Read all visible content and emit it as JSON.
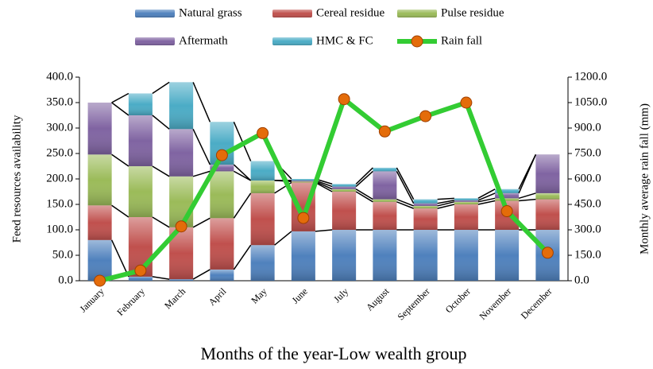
{
  "chart_data": {
    "type": "bar",
    "stacked": true,
    "x_label": "Months of the year-Low wealth group",
    "y_label": "Feed resources availability",
    "y2_label": "Monthly  average rain fall (mm)",
    "categories": [
      "January",
      "February",
      "March",
      "April",
      "May",
      "June",
      "July",
      "August",
      "September",
      "October",
      "November",
      "December"
    ],
    "series": [
      {
        "name": "Natural grass",
        "color": "#4f81bd",
        "values": [
          80,
          8,
          3,
          22,
          70,
          97,
          100,
          100,
          100,
          100,
          100,
          100
        ]
      },
      {
        "name": "Cereal residue",
        "color": "#c0504d",
        "values": [
          68,
          117,
          102,
          101,
          102,
          96,
          75,
          55,
          42,
          50,
          57,
          60
        ]
      },
      {
        "name": "Pulse residue",
        "color": "#9bbb59",
        "values": [
          100,
          100,
          100,
          92,
          25,
          2,
          5,
          5,
          5,
          5,
          5,
          12
        ]
      },
      {
        "name": "Aftermath",
        "color": "#8064a2",
        "values": [
          102,
          100,
          93,
          13,
          0,
          2,
          5,
          55,
          5,
          3,
          10,
          76
        ]
      },
      {
        "name": "HMC  & FC",
        "color": "#4bacc6",
        "values": [
          0,
          43,
          92,
          84,
          38,
          3,
          5,
          7,
          8,
          4,
          8,
          0
        ]
      },
      {
        "name": "Rain fall",
        "type": "line",
        "axis": "y2",
        "color": "#33cc33",
        "marker_color": "#e46c0a",
        "values": [
          0,
          60,
          320,
          740,
          870,
          370,
          1070,
          880,
          970,
          1050,
          410,
          165
        ]
      }
    ],
    "ylim": [
      0,
      400
    ],
    "yticks": [
      {
        "value": 0,
        "label": "0.0"
      },
      {
        "value": 50,
        "label": "50.0"
      },
      {
        "value": 100,
        "label": "100.0"
      },
      {
        "value": 150,
        "label": "150.0"
      },
      {
        "value": 200,
        "label": "200.0"
      },
      {
        "value": 250,
        "label": "250.0"
      },
      {
        "value": 300,
        "label": "300.0"
      },
      {
        "value": 350,
        "label": "350.0"
      },
      {
        "value": 400,
        "label": "400.0"
      }
    ],
    "y2lim": [
      0,
      1200
    ],
    "y2ticks": [
      {
        "value": 0,
        "label": "0.0"
      },
      {
        "value": 150,
        "label": "150.0"
      },
      {
        "value": 300,
        "label": "300.0"
      },
      {
        "value": 450,
        "label": "450.0"
      },
      {
        "value": 600,
        "label": "600.0"
      },
      {
        "value": 750,
        "label": "750.0"
      },
      {
        "value": 900,
        "label": "900.0"
      },
      {
        "value": 1050,
        "label": "1050.0"
      },
      {
        "value": 1200,
        "label": "1200.0"
      }
    ],
    "series_lines": true
  }
}
